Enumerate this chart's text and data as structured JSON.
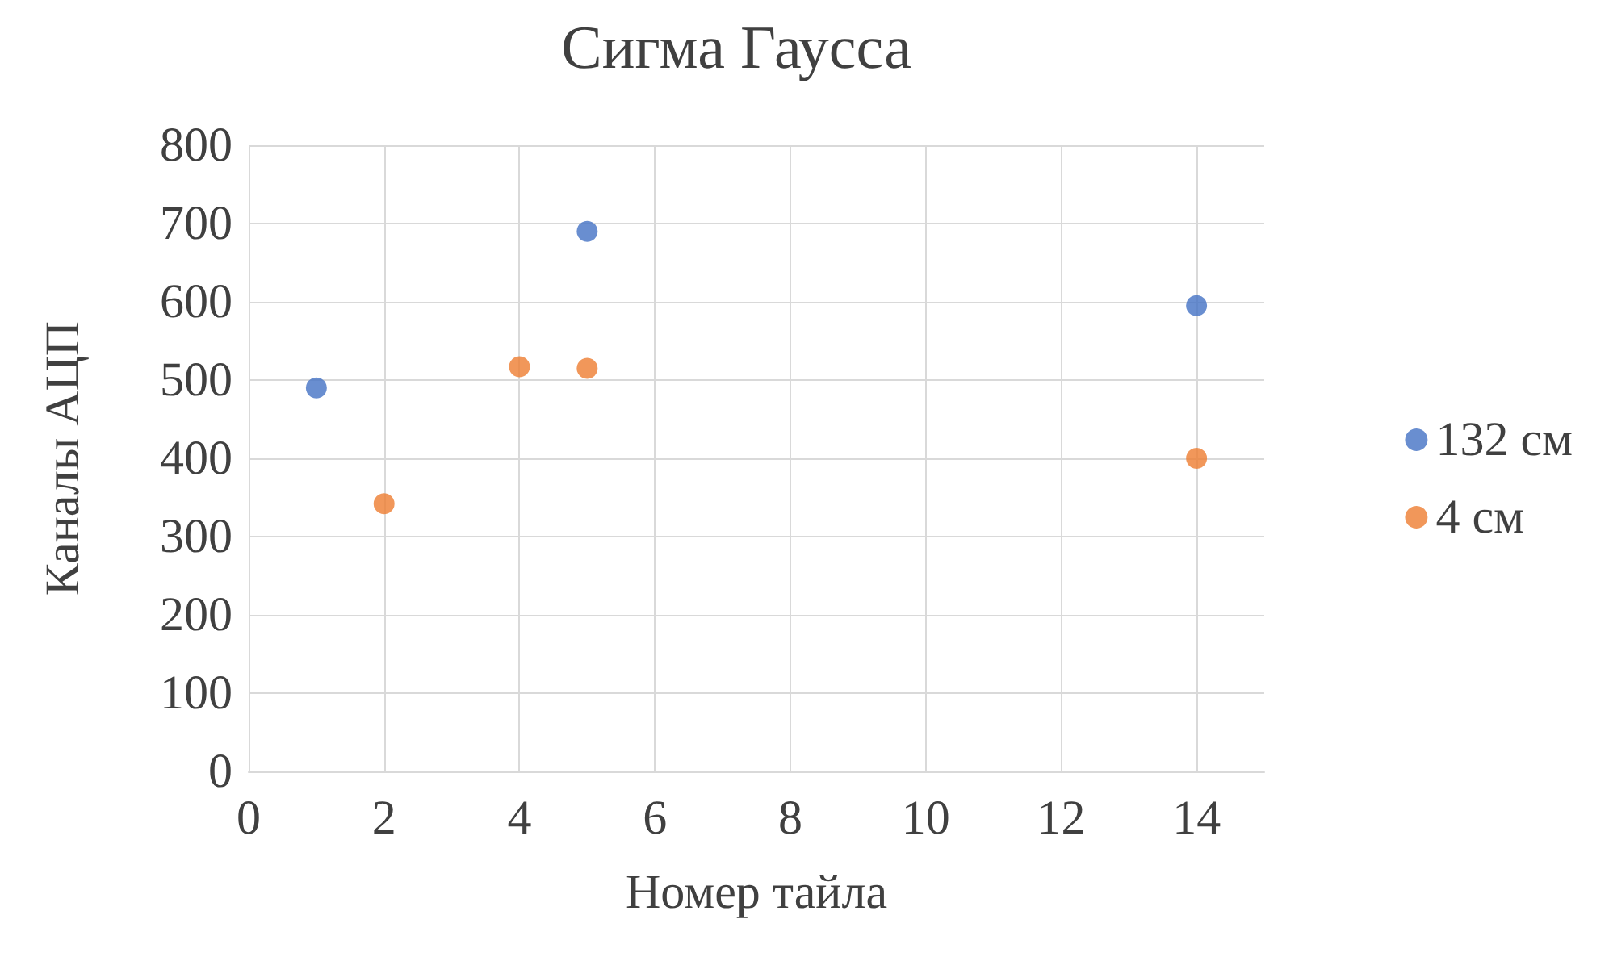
{
  "chart_data": {
    "type": "scatter",
    "title": "Сигма Гаусса",
    "xlabel": "Номер тайла",
    "ylabel": "Каналы АЦП",
    "series": [
      {
        "name": "132 см",
        "color": "#4472c4",
        "x": [
          1,
          5,
          14
        ],
        "values": [
          490,
          690,
          595
        ]
      },
      {
        "name": "4 см",
        "color": "#ed7d31",
        "x": [
          2,
          4,
          5,
          14
        ],
        "values": [
          342,
          517,
          515,
          400
        ]
      }
    ],
    "xlim": [
      0,
      15
    ],
    "xticks": [
      0,
      2,
      4,
      6,
      8,
      10,
      12,
      14
    ],
    "ylim": [
      0,
      800
    ],
    "yticks": [
      0,
      100,
      200,
      300,
      400,
      500,
      600,
      700,
      800
    ],
    "grid": true,
    "legend": "right",
    "marker": "circle"
  }
}
